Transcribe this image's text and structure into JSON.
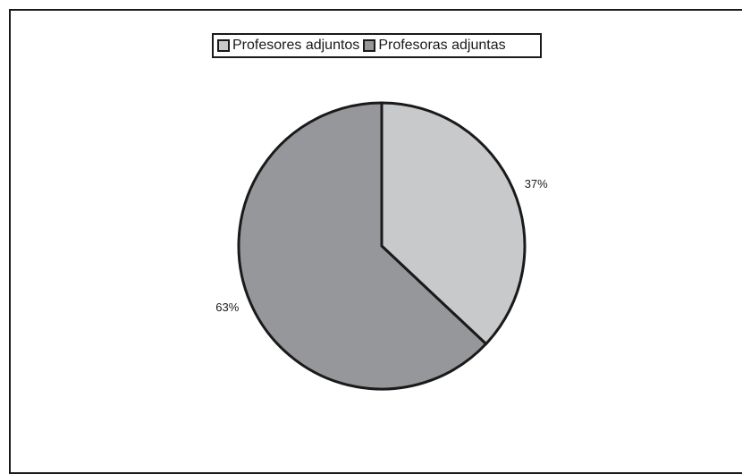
{
  "chart_data": {
    "type": "pie",
    "title": "",
    "legend": "top",
    "slices": [
      {
        "name": "Profesores adjuntos",
        "value": 37,
        "label": "37%",
        "color": "#c8c9cb"
      },
      {
        "name": "Profesoras adjuntas",
        "value": 63,
        "label": "63%",
        "color": "#96979a"
      }
    ]
  }
}
